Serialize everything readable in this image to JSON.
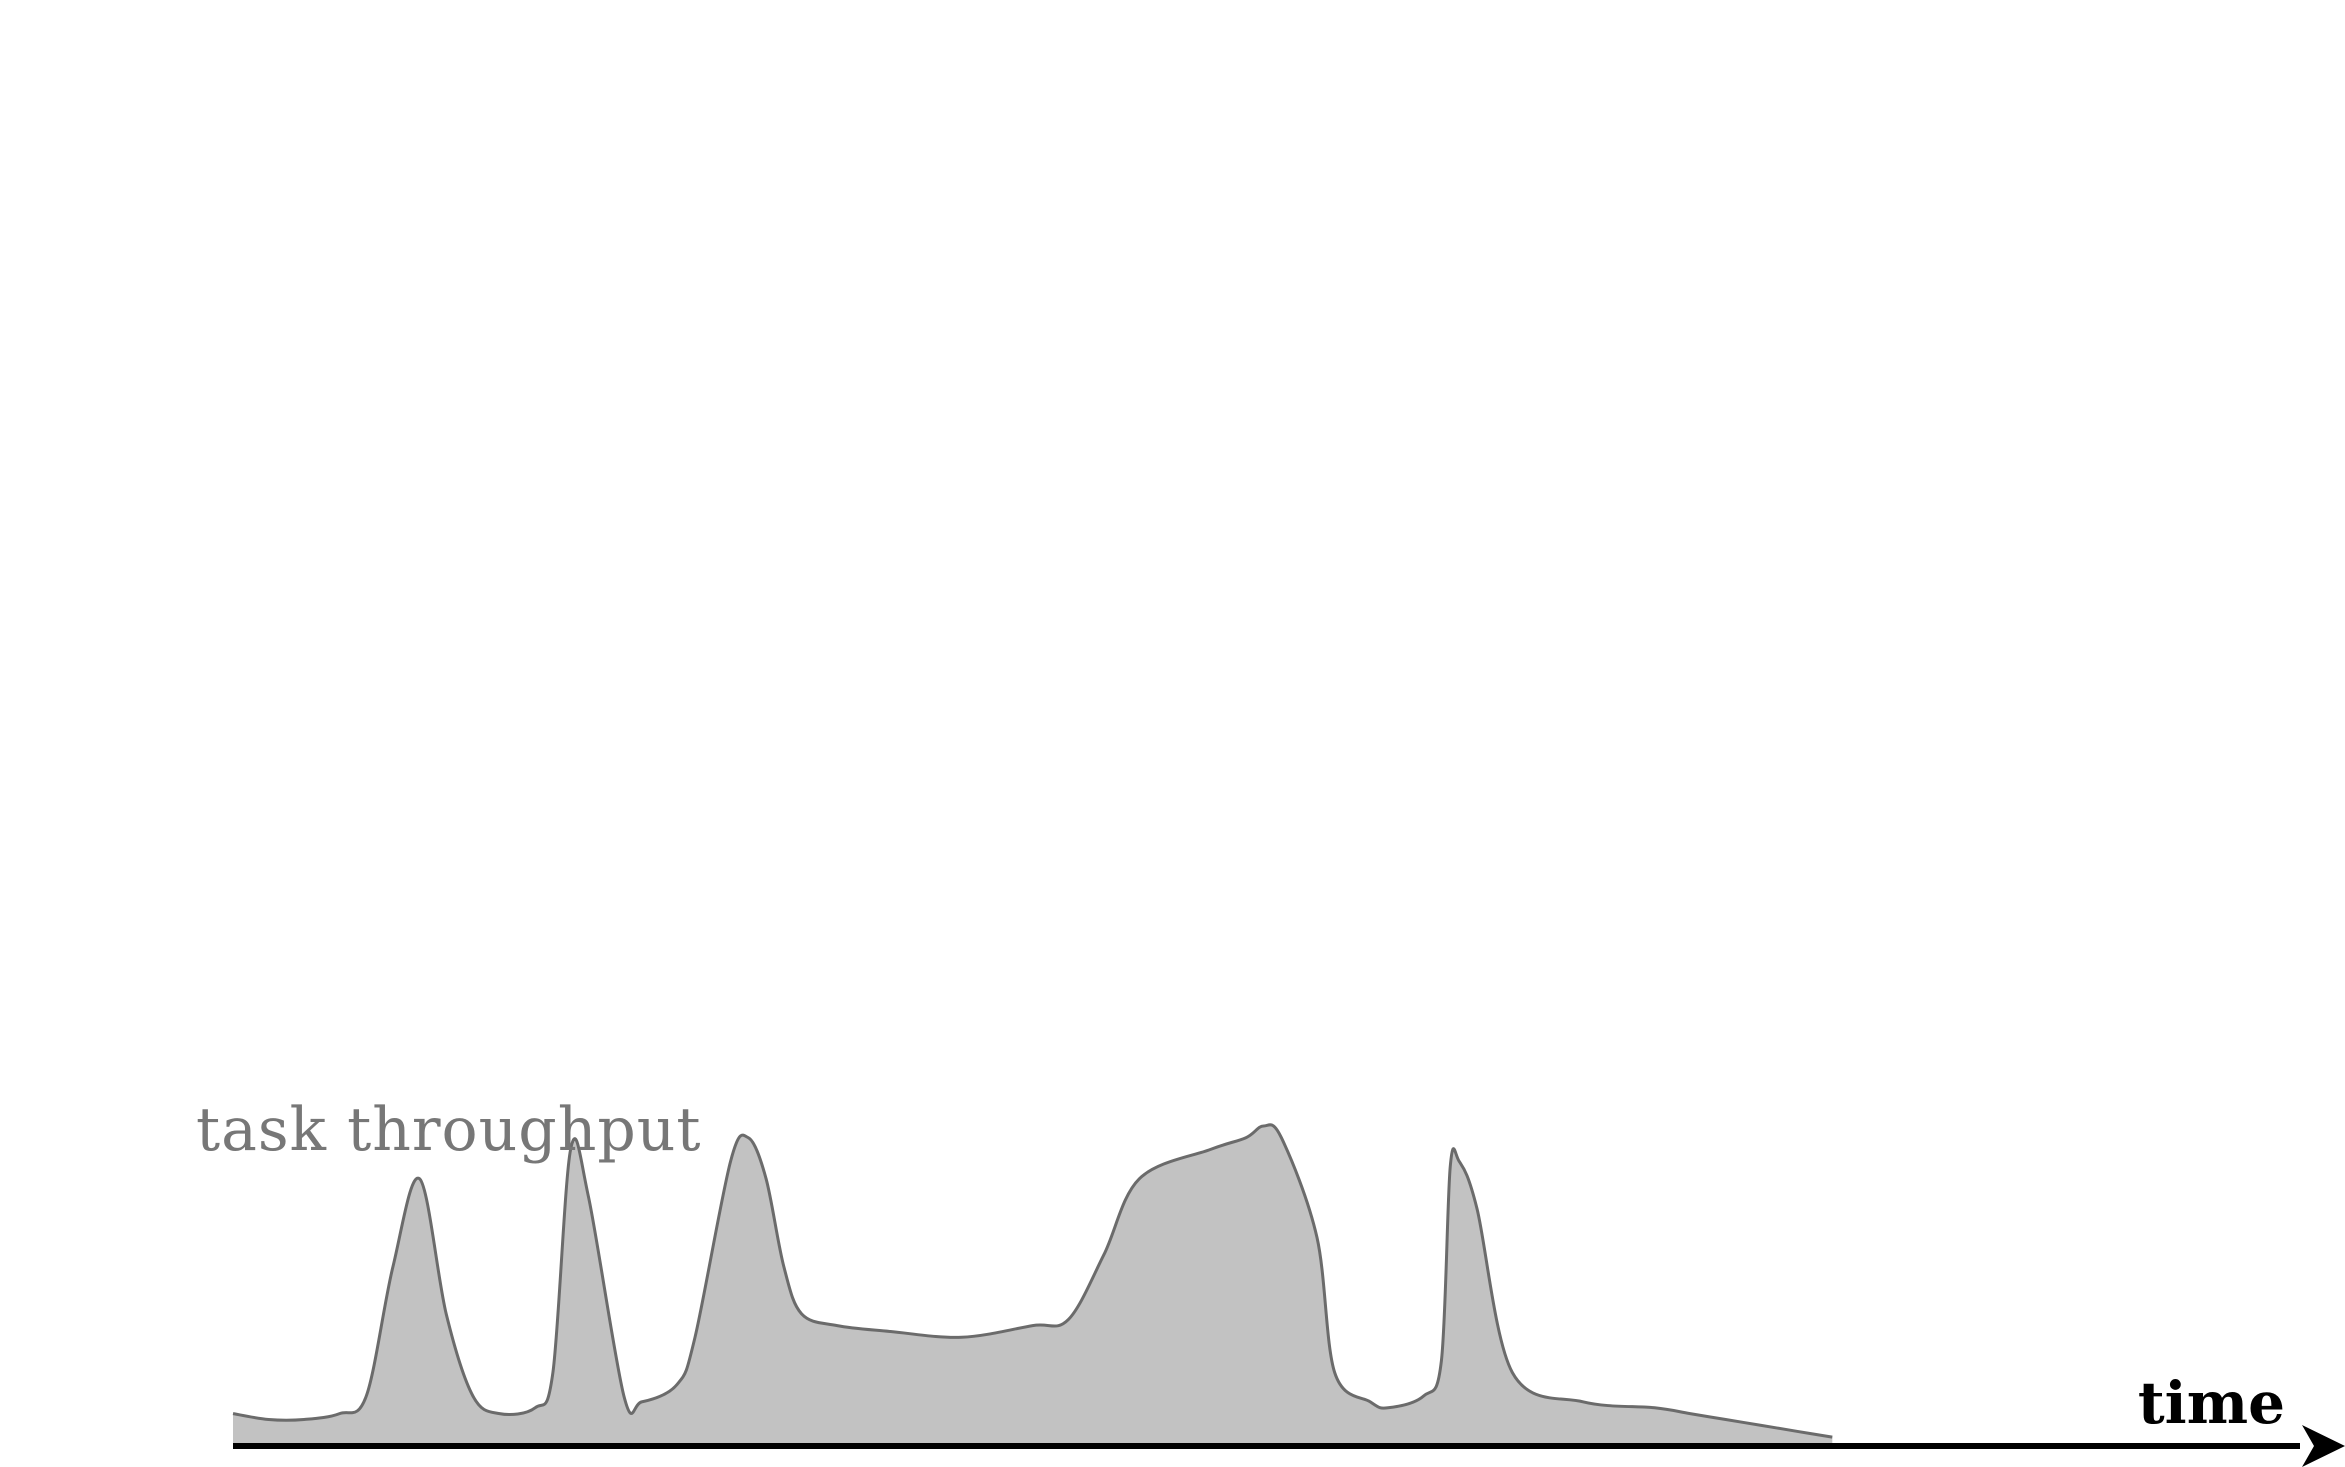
{
  "colors": {
    "fill": "#c2c2c2",
    "stroke": "#6b6b6b",
    "label": "#777777",
    "axis": "#000000"
  },
  "chart_data": {
    "type": "area",
    "xlabel": "time",
    "ylabel": "",
    "x_ticks": [],
    "y_ticks": [],
    "grid": false,
    "legend": "none",
    "xlim": [
      0,
      100
    ],
    "ylim": [
      0,
      100
    ],
    "series": [
      {
        "name": "task throughput",
        "points": [
          [
            0,
            5
          ],
          [
            2,
            4
          ],
          [
            4,
            4
          ],
          [
            6,
            5
          ],
          [
            7.5,
            8
          ],
          [
            9,
            30
          ],
          [
            10.5,
            45
          ],
          [
            12,
            22
          ],
          [
            13.5,
            8
          ],
          [
            15,
            5
          ],
          [
            17,
            6
          ],
          [
            18,
            12
          ],
          [
            19,
            50
          ],
          [
            20,
            42
          ],
          [
            22,
            8
          ],
          [
            23,
            7
          ],
          [
            25,
            10
          ],
          [
            26,
            18
          ],
          [
            28,
            48
          ],
          [
            29,
            52
          ],
          [
            30,
            45
          ],
          [
            31,
            30
          ],
          [
            32,
            22
          ],
          [
            34,
            20
          ],
          [
            37,
            19
          ],
          [
            41,
            18
          ],
          [
            45,
            20
          ],
          [
            47,
            21
          ],
          [
            49,
            32
          ],
          [
            51,
            45
          ],
          [
            55,
            50
          ],
          [
            57,
            52
          ],
          [
            58,
            54
          ],
          [
            59,
            52
          ],
          [
            61,
            35
          ],
          [
            62,
            12
          ],
          [
            64,
            7
          ],
          [
            65,
            6
          ],
          [
            67,
            8
          ],
          [
            68,
            14
          ],
          [
            68.5,
            47
          ],
          [
            69,
            48
          ],
          [
            70,
            40
          ],
          [
            72,
            12
          ],
          [
            76,
            7
          ],
          [
            80,
            6
          ],
          [
            82,
            5
          ],
          [
            84,
            4
          ],
          [
            86,
            3
          ],
          [
            88,
            2
          ],
          [
            90,
            1
          ]
        ]
      }
    ]
  }
}
